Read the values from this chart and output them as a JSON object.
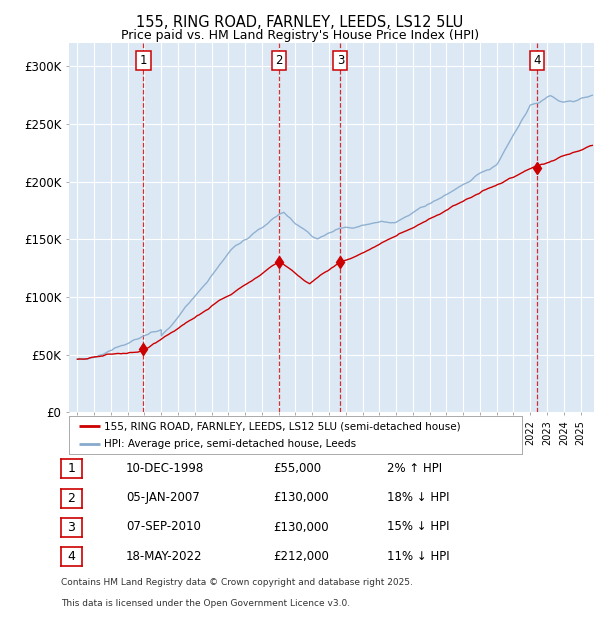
{
  "title1": "155, RING ROAD, FARNLEY, LEEDS, LS12 5LU",
  "title2": "Price paid vs. HM Land Registry's House Price Index (HPI)",
  "fig_bg_color": "#ffffff",
  "plot_bg_color": "#dce9f5",
  "red_color": "#cc0000",
  "blue_color": "#88aacc",
  "sale_points": [
    {
      "label": "1",
      "date_num": 1998.94,
      "price": 55000
    },
    {
      "label": "2",
      "date_num": 2007.02,
      "price": 130000
    },
    {
      "label": "3",
      "date_num": 2010.68,
      "price": 130000
    },
    {
      "label": "4",
      "date_num": 2022.38,
      "price": 212000
    }
  ],
  "vline_dates": [
    1998.94,
    2007.02,
    2010.68,
    2022.38
  ],
  "ylim": [
    0,
    320000
  ],
  "xlim": [
    1994.5,
    2025.8
  ],
  "yticks": [
    0,
    50000,
    100000,
    150000,
    200000,
    250000,
    300000
  ],
  "ytick_labels": [
    "£0",
    "£50K",
    "£100K",
    "£150K",
    "£200K",
    "£250K",
    "£300K"
  ],
  "legend_red_label": "155, RING ROAD, FARNLEY, LEEDS, LS12 5LU (semi-detached house)",
  "legend_blue_label": "HPI: Average price, semi-detached house, Leeds",
  "table_rows": [
    {
      "num": "1",
      "date": "10-DEC-1998",
      "price": "£55,000",
      "hpi": "2% ↑ HPI"
    },
    {
      "num": "2",
      "date": "05-JAN-2007",
      "price": "£130,000",
      "hpi": "18% ↓ HPI"
    },
    {
      "num": "3",
      "date": "07-SEP-2010",
      "price": "£130,000",
      "hpi": "15% ↓ HPI"
    },
    {
      "num": "4",
      "date": "18-MAY-2022",
      "price": "£212,000",
      "hpi": "11% ↓ HPI"
    }
  ],
  "footnote1": "Contains HM Land Registry data © Crown copyright and database right 2025.",
  "footnote2": "This data is licensed under the Open Government Licence v3.0."
}
